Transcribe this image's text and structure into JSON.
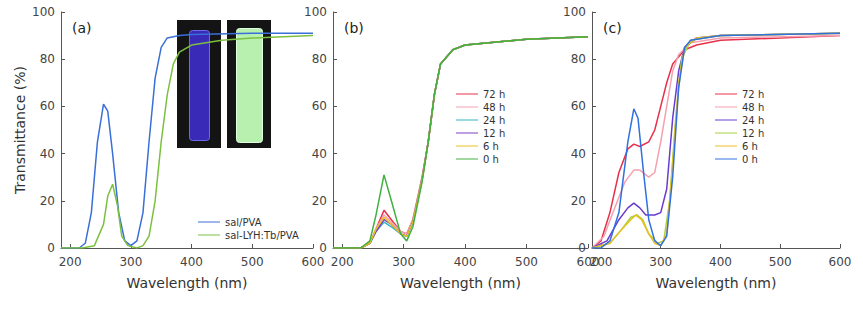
{
  "chart_data": [
    {
      "type": "line",
      "title": "(a)",
      "x_label": "Wavelength (nm)",
      "y_label": "Transmittance (%)",
      "xlim": [
        185,
        600
      ],
      "xticks": [
        200,
        300,
        400,
        500,
        600
      ],
      "ylim": [
        0,
        100
      ],
      "yticks": [
        0,
        20,
        40,
        60,
        80,
        100
      ],
      "grid": false,
      "legend": "bottom-right",
      "series": [
        {
          "name": "sal/PVA",
          "color": "#3a6fd8",
          "x": [
            185,
            200,
            215,
            225,
            235,
            245,
            255,
            262,
            270,
            280,
            290,
            300,
            310,
            320,
            330,
            340,
            350,
            360,
            380,
            400,
            500,
            600
          ],
          "values": [
            0,
            0,
            0,
            2,
            15,
            45,
            61,
            58,
            40,
            15,
            3,
            1,
            3,
            15,
            45,
            72,
            85,
            89,
            90,
            90.5,
            91,
            91
          ]
        },
        {
          "name": "sal-LYH:Tb/PVA",
          "color": "#7cc040",
          "x": [
            185,
            220,
            240,
            255,
            262,
            270,
            278,
            285,
            295,
            310,
            320,
            330,
            340,
            350,
            360,
            370,
            380,
            400,
            450,
            500,
            600
          ],
          "values": [
            0,
            0,
            1,
            10,
            22,
            27,
            18,
            5,
            1,
            0,
            1,
            5,
            20,
            45,
            65,
            78,
            83,
            86,
            88,
            89,
            90
          ]
        }
      ]
    },
    {
      "type": "line",
      "title": "(b)",
      "x_label": "Wavelength (nm)",
      "xlim": [
        185,
        600
      ],
      "xticks": [
        200,
        300,
        400,
        500,
        600
      ],
      "ylim": [
        0,
        100
      ],
      "yticks": [
        0,
        20,
        40,
        60,
        80,
        100
      ],
      "grid": false,
      "legend": "right",
      "series": [
        {
          "name": "72 h",
          "color": "#e8304a",
          "x": [
            185,
            230,
            245,
            255,
            268,
            280,
            295,
            305,
            315,
            330,
            340,
            350,
            360,
            380,
            400,
            500,
            600
          ],
          "values": [
            0,
            0,
            2,
            8,
            16,
            12,
            7,
            6,
            12,
            30,
            45,
            65,
            78,
            84,
            86,
            88.5,
            89.5
          ]
        },
        {
          "name": "48 h",
          "color": "#f4a0b0",
          "x": [
            185,
            230,
            245,
            255,
            268,
            280,
            295,
            305,
            315,
            330,
            340,
            350,
            360,
            380,
            400,
            500,
            600
          ],
          "values": [
            0,
            0,
            2,
            8,
            14,
            11,
            7,
            6,
            12,
            30,
            45,
            65,
            78,
            84,
            86,
            88.5,
            89.5
          ]
        },
        {
          "name": "24 h",
          "color": "#33b5c5",
          "x": [
            185,
            230,
            245,
            255,
            268,
            280,
            295,
            305,
            315,
            330,
            340,
            350,
            360,
            380,
            400,
            500,
            600
          ],
          "values": [
            0,
            0,
            2,
            7,
            11,
            9,
            6,
            5,
            11,
            29,
            45,
            65,
            78,
            84,
            86,
            88.5,
            89.5
          ]
        },
        {
          "name": "12 h",
          "color": "#7b3fc4",
          "x": [
            185,
            230,
            245,
            255,
            268,
            280,
            295,
            305,
            315,
            330,
            340,
            350,
            360,
            380,
            400,
            500,
            600
          ],
          "values": [
            0,
            0,
            2,
            7,
            12,
            10,
            6,
            5,
            11,
            29,
            45,
            65,
            78,
            84,
            86,
            88.5,
            89.5
          ]
        },
        {
          "name": "6 h",
          "color": "#e8c020",
          "x": [
            185,
            230,
            245,
            255,
            268,
            280,
            295,
            305,
            315,
            330,
            340,
            350,
            360,
            380,
            400,
            500,
            600
          ],
          "values": [
            0,
            0,
            2,
            8,
            13,
            10,
            6,
            5,
            11,
            29,
            45,
            65,
            78,
            84,
            86,
            88.5,
            89.5
          ]
        },
        {
          "name": "0 h",
          "color": "#40b040",
          "x": [
            185,
            230,
            245,
            255,
            268,
            280,
            295,
            305,
            315,
            330,
            340,
            350,
            360,
            380,
            400,
            500,
            600
          ],
          "values": [
            0,
            0,
            3,
            14,
            31,
            20,
            6,
            3,
            9,
            28,
            45,
            65,
            78,
            84,
            86,
            88.5,
            89.5
          ]
        }
      ]
    },
    {
      "type": "line",
      "title": "(c)",
      "x_label": "Wavelength (nm)",
      "xlim": [
        185,
        600
      ],
      "xticks": [
        200,
        300,
        400,
        500,
        600
      ],
      "ylim": [
        0,
        100
      ],
      "yticks": [
        0,
        20,
        40,
        60,
        80,
        100
      ],
      "grid": false,
      "legend": "right",
      "series": [
        {
          "name": "72 h",
          "color": "#e8304a",
          "x": [
            185,
            200,
            215,
            230,
            245,
            255,
            265,
            280,
            290,
            300,
            310,
            320,
            340,
            360,
            400,
            600
          ],
          "values": [
            0,
            3,
            15,
            32,
            42,
            44,
            43,
            45,
            50,
            60,
            70,
            78,
            84,
            86,
            88,
            90
          ]
        },
        {
          "name": "48 h",
          "color": "#f4a0b0",
          "x": [
            185,
            205,
            220,
            240,
            255,
            265,
            280,
            290,
            300,
            310,
            320,
            330,
            350,
            400,
            600
          ],
          "values": [
            0,
            5,
            15,
            28,
            33,
            33,
            30,
            32,
            45,
            60,
            75,
            82,
            87,
            89,
            90
          ]
        },
        {
          "name": "24 h",
          "color": "#6a3bd0",
          "x": [
            185,
            210,
            230,
            245,
            255,
            265,
            275,
            290,
            300,
            310,
            320,
            330,
            340,
            360,
            400,
            600
          ],
          "values": [
            0,
            3,
            12,
            17,
            19,
            17,
            14,
            14,
            15,
            25,
            55,
            75,
            85,
            89,
            90,
            91
          ]
        },
        {
          "name": "12 h",
          "color": "#a8d040",
          "x": [
            185,
            215,
            235,
            250,
            260,
            270,
            280,
            295,
            305,
            315,
            325,
            335,
            350,
            400,
            600
          ],
          "values": [
            0,
            2,
            8,
            13,
            14,
            12,
            6,
            2,
            3,
            20,
            55,
            80,
            88,
            90,
            91
          ]
        },
        {
          "name": "6 h",
          "color": "#e8c020",
          "x": [
            185,
            215,
            235,
            250,
            258,
            268,
            280,
            290,
            300,
            310,
            320,
            330,
            340,
            360,
            400,
            600
          ],
          "values": [
            0,
            2,
            8,
            12,
            14,
            12,
            6,
            2,
            1,
            6,
            35,
            70,
            85,
            89,
            90,
            91
          ]
        },
        {
          "name": "0 h",
          "color": "#3070e0",
          "x": [
            185,
            200,
            215,
            230,
            245,
            255,
            262,
            270,
            280,
            290,
            300,
            310,
            320,
            330,
            340,
            350,
            400,
            600
          ],
          "values": [
            0,
            0,
            3,
            15,
            45,
            59,
            55,
            35,
            12,
            3,
            1,
            5,
            30,
            68,
            85,
            88,
            90,
            91
          ]
        }
      ]
    }
  ]
}
